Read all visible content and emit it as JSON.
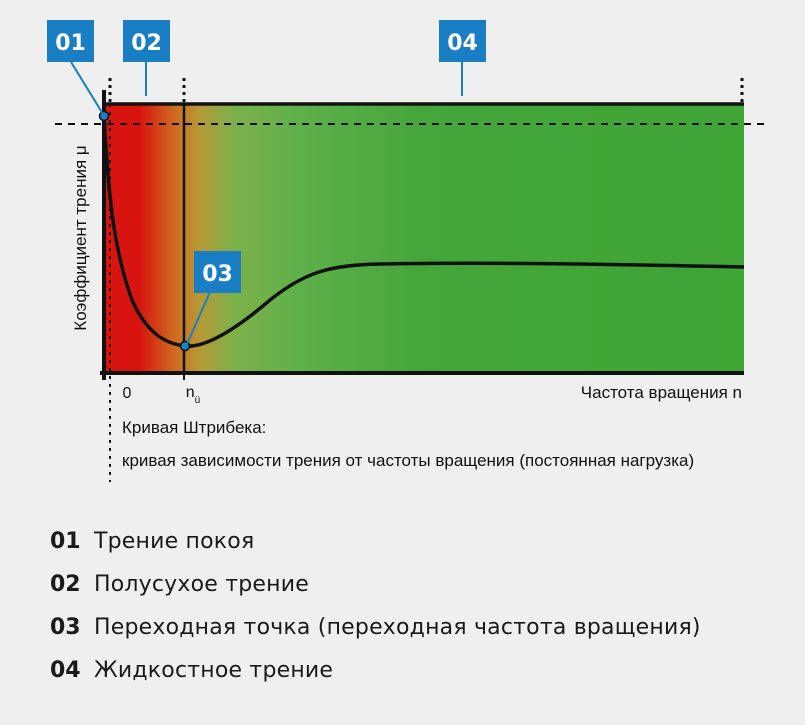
{
  "diagram": {
    "y_axis_label": "Коэффициент трения μ",
    "x_axis_label": "Частота вращения n",
    "tick_zero": "0",
    "tick_nu_main": "n",
    "tick_nu_sub": "ü",
    "caption_line1": "Кривая Штрибека:",
    "caption_line2": "кривая зависимости трения от частоты вращения (постоянная нагрузка)",
    "badges": {
      "b01": "01",
      "b02": "02",
      "b03": "03",
      "b04": "04"
    },
    "colors": {
      "badge": "#1a7ec4",
      "red": "#d7140f",
      "green": "#3fa535",
      "curve": "#111111"
    }
  },
  "legend": {
    "items": [
      {
        "num": "01",
        "text": "Трение покоя"
      },
      {
        "num": "02",
        "text": "Полусухое трение"
      },
      {
        "num": "03",
        "text": "Переходная точка (переходная частота вращения)"
      },
      {
        "num": "04",
        "text": "Жидкостное трение"
      }
    ]
  }
}
